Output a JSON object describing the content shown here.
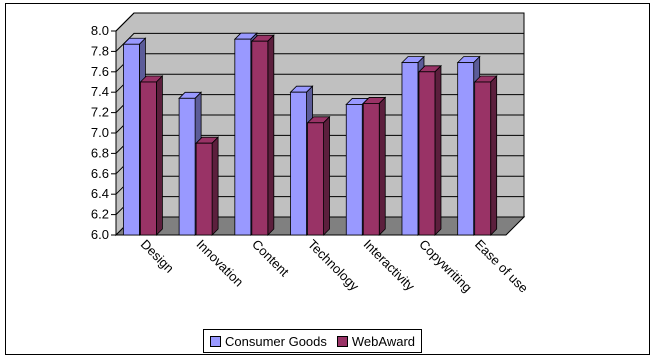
{
  "chart_data": {
    "type": "bar",
    "categories": [
      "Design",
      "Innovation",
      "Content",
      "Technology",
      "Interactivity",
      "Copywriting",
      "Ease of use"
    ],
    "series": [
      {
        "name": "Consumer Goods",
        "values": [
          7.87,
          7.34,
          7.92,
          7.4,
          7.28,
          7.69,
          7.69
        ],
        "color": "#9999ff"
      },
      {
        "name": "WebAward",
        "values": [
          7.5,
          6.9,
          7.9,
          7.1,
          7.29,
          7.6,
          7.5
        ],
        "color": "#993366"
      }
    ],
    "ylim": [
      6.0,
      8.0
    ],
    "yticks": [
      "6.0",
      "6.2",
      "6.4",
      "6.6",
      "6.8",
      "7.0",
      "7.2",
      "7.4",
      "7.6",
      "7.8",
      "8.0"
    ],
    "grid": true,
    "legend_position": "bottom",
    "title": "",
    "xlabel": "",
    "ylabel": "",
    "wall_color": "#c0c0c0",
    "floor_color": "#808080"
  }
}
